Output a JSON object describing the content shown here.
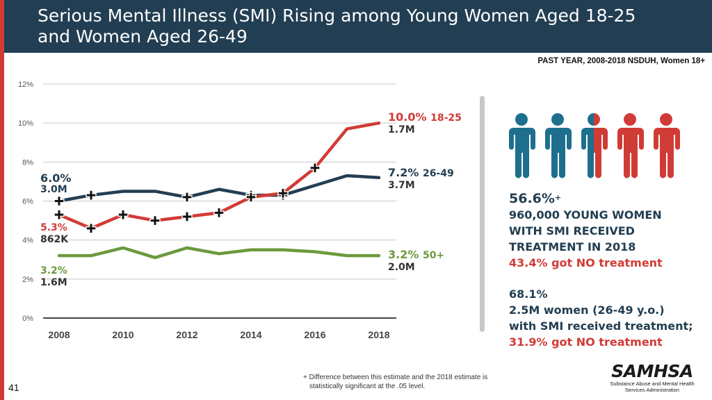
{
  "title": {
    "line1": "Serious Mental Illness (SMI) Rising among Young Women Aged 18-25",
    "line2": "and Women Aged 26-49"
  },
  "source": "PAST YEAR, 2008-2018 NSDUH, Women 18+",
  "chart_data": {
    "type": "line",
    "x": [
      2008,
      2009,
      2010,
      2011,
      2012,
      2013,
      2014,
      2015,
      2016,
      2017,
      2018
    ],
    "xticks": [
      "2008",
      "2010",
      "2012",
      "2014",
      "2016",
      "2018"
    ],
    "yticks": [
      "0%",
      "2%",
      "4%",
      "6%",
      "8%",
      "10%",
      "12%"
    ],
    "ylim": [
      0,
      12
    ],
    "grid": true,
    "series": [
      {
        "name": "18-25",
        "color": "#d13b36",
        "values": [
          5.3,
          4.6,
          5.3,
          5.0,
          5.2,
          5.4,
          6.2,
          6.4,
          7.7,
          9.7,
          10.0
        ],
        "significant": [
          true,
          true,
          true,
          true,
          true,
          true,
          true,
          true,
          true,
          false,
          false
        ]
      },
      {
        "name": "26-49",
        "color": "#223e52",
        "values": [
          6.0,
          6.3,
          6.5,
          6.5,
          6.2,
          6.6,
          6.3,
          6.3,
          6.8,
          7.3,
          7.2
        ],
        "significant": [
          true,
          true,
          false,
          false,
          true,
          false,
          true,
          true,
          false,
          false,
          false
        ]
      },
      {
        "name": "50+",
        "color": "#6b9a3d",
        "values": [
          3.2,
          3.2,
          3.6,
          3.1,
          3.6,
          3.3,
          3.5,
          3.5,
          3.4,
          3.2,
          3.2
        ],
        "significant": [
          false,
          false,
          false,
          false,
          false,
          false,
          false,
          false,
          false,
          false,
          false
        ]
      }
    ],
    "start_labels": [
      {
        "value": "6.0%",
        "count": "3.0M"
      },
      {
        "value": "5.3%",
        "count": "862K"
      },
      {
        "value": "3.2%",
        "count": "1.6M"
      }
    ],
    "end_labels": [
      {
        "value": "10.0%",
        "group": "18-25",
        "count": "1.7M"
      },
      {
        "value": "7.2%",
        "group": "26-49",
        "count": "3.7M"
      },
      {
        "value": "3.2%",
        "group": "50+",
        "count": "2.0M"
      }
    ]
  },
  "icons": {
    "people": [
      {
        "fill": "teal"
      },
      {
        "fill": "teal"
      },
      {
        "fill": "split"
      },
      {
        "fill": "red"
      },
      {
        "fill": "red"
      }
    ],
    "colors": {
      "teal": "#1e6f8e",
      "red": "#d13b36"
    }
  },
  "stats": {
    "young": {
      "pct": "56.6%",
      "sup": "+",
      "line1": "960,000 YOUNG WOMEN",
      "line2": "WITH SMI RECEIVED",
      "line3": "TREATMENT IN 2018",
      "no_treatment": "43.4% got NO treatment"
    },
    "adult": {
      "pct": "68.1%",
      "line1": "2.5M women (26-49 y.o.)",
      "line2": "with SMI received treatment;",
      "no_treatment": "31.9% got NO treatment"
    }
  },
  "footnote": {
    "line1": "+ Difference between this estimate and the 2018 estimate is",
    "line2": "statistically significant at the .05 level."
  },
  "logo": {
    "name": "SAMHSA",
    "sub1": "Substance Abuse and Mental Health",
    "sub2": "Services Administration"
  },
  "page_number": "41"
}
